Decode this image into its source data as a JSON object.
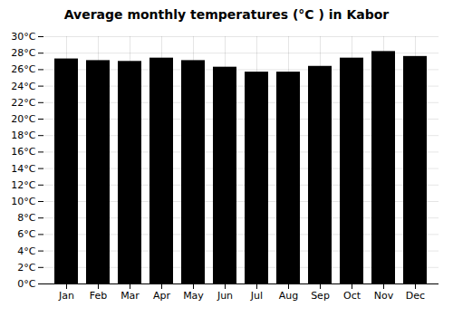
{
  "chart_data": {
    "type": "bar",
    "title": "Average monthly temperatures (°C ) in Kabor",
    "categories": [
      "Jan",
      "Feb",
      "Mar",
      "Apr",
      "May",
      "Jun",
      "Jul",
      "Aug",
      "Sep",
      "Oct",
      "Nov",
      "Dec"
    ],
    "values": [
      27.3,
      27.1,
      27.0,
      27.4,
      27.1,
      26.3,
      25.7,
      25.7,
      26.4,
      27.4,
      28.2,
      27.6
    ],
    "ylim": [
      0,
      30
    ],
    "yticks": [
      {
        "value": 0,
        "label": "0°C"
      },
      {
        "value": 2,
        "label": "2°C"
      },
      {
        "value": 4,
        "label": "4°C"
      },
      {
        "value": 6,
        "label": "6°C"
      },
      {
        "value": 8,
        "label": "8°C"
      },
      {
        "value": 10,
        "label": "10°C"
      },
      {
        "value": 12,
        "label": "12°C"
      },
      {
        "value": 14,
        "label": "14°C"
      },
      {
        "value": 16,
        "label": "16°C"
      },
      {
        "value": 18,
        "label": "18°C"
      },
      {
        "value": 20,
        "label": "20°C"
      },
      {
        "value": 22,
        "label": "22°C"
      },
      {
        "value": 24,
        "label": "24°C"
      },
      {
        "value": 26,
        "label": "26°C"
      },
      {
        "value": 28,
        "label": "28°C"
      },
      {
        "value": 30,
        "label": "30°C"
      }
    ],
    "grid": true
  }
}
